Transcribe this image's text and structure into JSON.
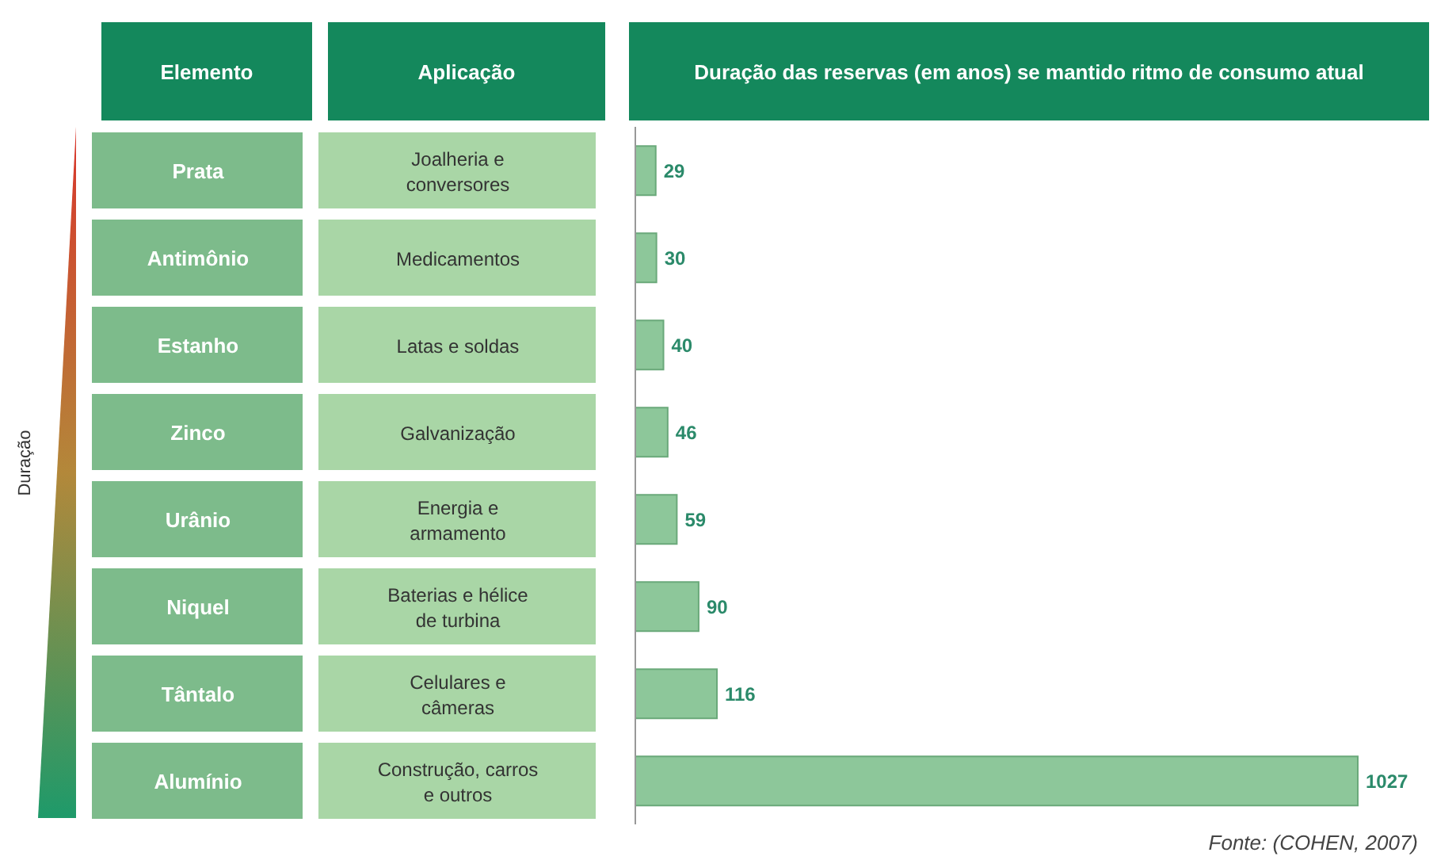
{
  "chart_data": {
    "type": "bar",
    "orientation": "horizontal",
    "title": "Duração das reservas (em anos) se mantido ritmo de consumo atual",
    "categories": [
      "Prata",
      "Antimônio",
      "Estanho",
      "Zinco",
      "Urânio",
      "Niquel",
      "Tântalo",
      "Alumínio"
    ],
    "values": [
      29,
      30,
      40,
      46,
      59,
      90,
      116,
      1027
    ],
    "color": "#8dc79a",
    "data_labels": true,
    "legend": false,
    "grid": false,
    "annotations": [
      "Elemento",
      "Aplicação",
      "Duração",
      "Joalheria e conversores",
      "Medicamentos",
      "Latas e soldas",
      "Galvanização",
      "Energia e armamento",
      "Baterias e hélice de turbina",
      "Celulares e câmeras",
      "Construção, carros e outros",
      "Fonte: (COHEN, 2007)"
    ]
  }
}
